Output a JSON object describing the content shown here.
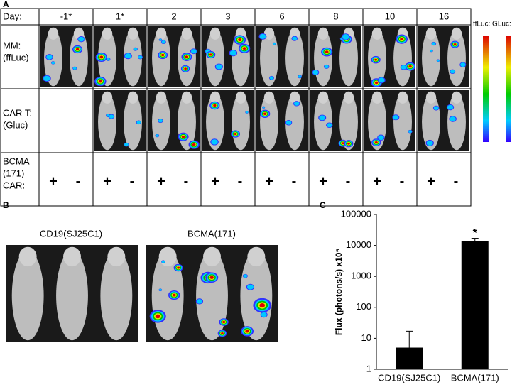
{
  "panel_a": {
    "label": "A",
    "day_label": "Day:",
    "days": [
      "-1*",
      "1*",
      "2",
      "3",
      "6",
      "8",
      "10",
      "16"
    ],
    "rows": [
      [
        "MM:",
        "(ffLuc)"
      ],
      [
        "CAR T:",
        "(Gluc)"
      ]
    ],
    "car_label": [
      "BCMA",
      "(171)",
      "CAR:"
    ],
    "signs": [
      "+",
      "-"
    ],
    "legend": "ffLuc: GLuc:"
  },
  "panel_b": {
    "label": "B",
    "titles": [
      "CD19(SJ25C1)",
      "BCMA(171)"
    ]
  },
  "panel_c": {
    "label": "C"
  },
  "chart_data": {
    "type": "bar",
    "categories": [
      "CD19(SJ25C1)",
      "BCMA(171)"
    ],
    "values": [
      5,
      14000
    ],
    "errors": [
      12,
      3000
    ],
    "y_label": "Flux (photons/s) x10⁵",
    "annotation": "*",
    "color": "#000000",
    "log_scale": true,
    "ylim": [
      1,
      100000
    ],
    "yticks": [
      1,
      10,
      100,
      1000,
      10000,
      100000
    ]
  }
}
